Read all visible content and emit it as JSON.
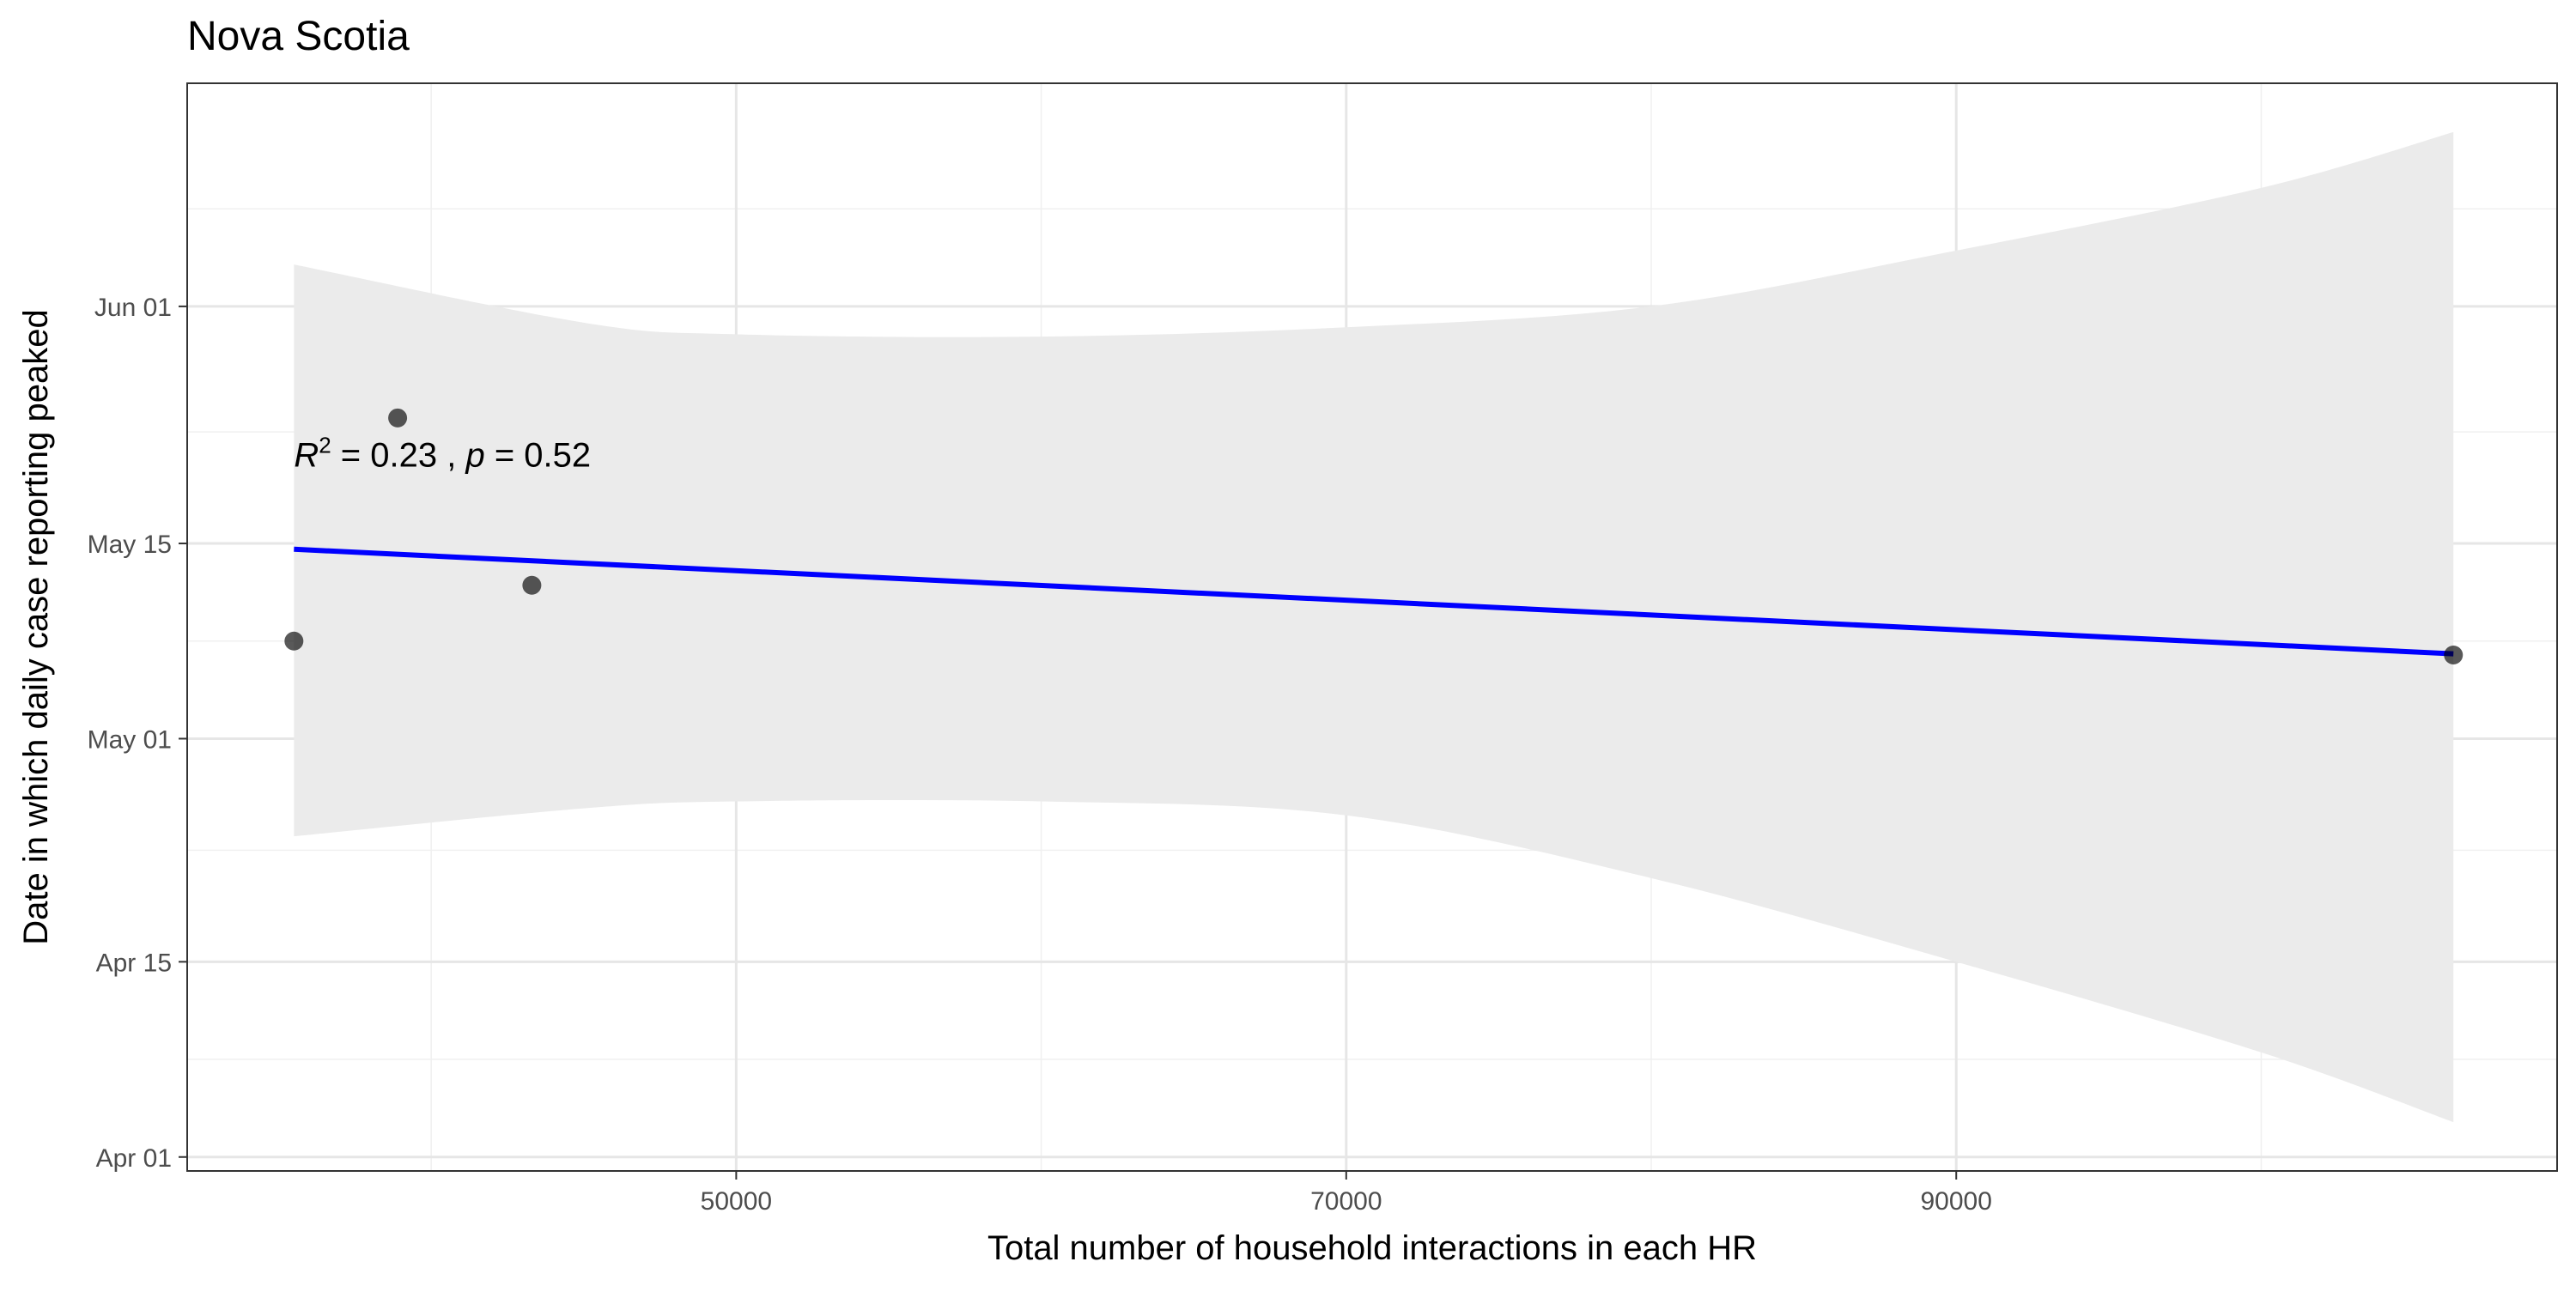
{
  "chart_data": {
    "type": "scatter",
    "title": "Nova Scotia",
    "xlabel": "Total number of household interactions in each HR",
    "ylabel": "Date in which daily case reporting peaked",
    "x_ticks": [
      50000,
      70000,
      90000
    ],
    "x_minor_ticks": [
      40000,
      60000,
      80000,
      100000
    ],
    "xlim": [
      32000,
      109700
    ],
    "y_ticks": [
      {
        "date": "2020-04-01",
        "label": "Apr 01"
      },
      {
        "date": "2020-04-15",
        "label": "Apr 15"
      },
      {
        "date": "2020-05-01",
        "label": "May 01"
      },
      {
        "date": "2020-05-15",
        "label": "May 15"
      },
      {
        "date": "2020-06-01",
        "label": "Jun 01"
      }
    ],
    "y_minor_ticks": [
      "2020-04-08",
      "2020-04-23",
      "2020-05-08",
      "2020-05-23",
      "2020-06-08"
    ],
    "ylim": [
      "2020-03-31",
      "2020-06-17"
    ],
    "points": [
      {
        "x": 35500,
        "y": "2020-05-08"
      },
      {
        "x": 38900,
        "y": "2020-05-24"
      },
      {
        "x": 43300,
        "y": "2020-05-12"
      },
      {
        "x": 106300,
        "y": "2020-05-07"
      }
    ],
    "fit_line": {
      "method": "linear regression",
      "color": "#0000ff",
      "start": {
        "x": 35500,
        "y": "2020-05-14T14:00"
      },
      "end": {
        "x": 106300,
        "y": "2020-05-07T02:00"
      }
    },
    "confidence_band": {
      "color": "#ebebeb",
      "x": [
        35500,
        45000,
        50000,
        60000,
        70000,
        80000,
        90000,
        100000,
        106300
      ],
      "upper": [
        "2020-06-04",
        "2020-05-30T20:00",
        "2020-05-30",
        "2020-05-29T20:00",
        "2020-05-30T12:00",
        "2020-06-01",
        "2020-06-05",
        "2020-06-09T12:00",
        "2020-06-13T12:00"
      ],
      "lower": [
        "2020-04-24",
        "2020-04-26",
        "2020-04-26T12:00",
        "2020-04-26T12:00",
        "2020-04-25T12:00",
        "2020-04-21",
        "2020-04-15",
        "2020-04-08T12:00",
        "2020-04-03T12:00"
      ]
    },
    "annotation": {
      "r_label": "R",
      "r_superscript": "2",
      "r2_text": " = 0.23 , ",
      "p_label": "p",
      "p_text": " = 0.52",
      "anchor": {
        "x": 35500,
        "y": "2020-05-20T12:00"
      }
    },
    "grid": true,
    "theme": "bw",
    "point_color": "#000000",
    "point_alpha": 0.65
  }
}
